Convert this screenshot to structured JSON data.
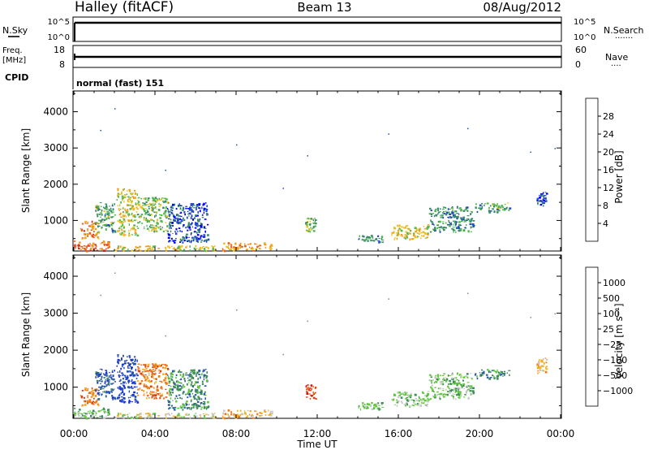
{
  "header": {
    "title_left": "Halley (fitACF)",
    "title_center": "Beam 13",
    "title_right": "08/Aug/2012"
  },
  "strip_nsky": {
    "left_label": "N.Sky",
    "left_ticks": [
      "10^5",
      "10^0"
    ],
    "right_ticks": [
      "10^5",
      "10^0"
    ],
    "right_label": "N.Search",
    "right_marker": "·······"
  },
  "strip_freq": {
    "left_label_1": "Freq.",
    "left_label_2": "[MHz]",
    "left_ticks": [
      "18",
      "8"
    ],
    "right_ticks": [
      "60",
      "0"
    ],
    "right_label": "Nave",
    "right_marker": "····"
  },
  "cpid": {
    "label": "CPID",
    "value": "normal (fast) 151"
  },
  "colors": {
    "power": [
      "#0000ff",
      "#204bbb",
      "#3a8a6a",
      "#52b84a",
      "#e8c020",
      "#f39b1a",
      "#ef5a14",
      "#e02010"
    ],
    "velocity": [
      "#1a3ac8",
      "#2f5aa8",
      "#3e8a5a",
      "#5ec83a",
      "#c8c8c8",
      "#f0b020",
      "#f07a1a",
      "#e04010",
      "#e01010"
    ]
  },
  "chart_data": [
    {
      "type": "heatmap",
      "name": "power-panel",
      "ylabel": "Slant Range [km]",
      "yticks": [
        1000,
        2000,
        3000,
        4000
      ],
      "ylim": [
        180,
        4550
      ],
      "xlim_hours": [
        0,
        24
      ],
      "colorbar": {
        "label": "Power [dB]",
        "ticks": [
          "4",
          "8",
          "12",
          "16",
          "20",
          "24",
          "28"
        ],
        "range": [
          0,
          32
        ]
      },
      "regions": [
        {
          "t0": 0.0,
          "t1": 1.8,
          "r0": 180,
          "r1": 450,
          "v": 26
        },
        {
          "t0": 0.3,
          "t1": 1.2,
          "r0": 500,
          "r1": 1000,
          "v": 24
        },
        {
          "t0": 1.0,
          "t1": 2.0,
          "r0": 700,
          "r1": 1500,
          "v": 12
        },
        {
          "t0": 2.1,
          "t1": 3.1,
          "r0": 600,
          "r1": 1900,
          "v": 18
        },
        {
          "t0": 3.1,
          "t1": 4.6,
          "r0": 700,
          "r1": 1650,
          "v": 14
        },
        {
          "t0": 4.6,
          "t1": 6.6,
          "r0": 400,
          "r1": 1500,
          "v": 6
        },
        {
          "t0": 2.0,
          "t1": 7.0,
          "r0": 180,
          "r1": 320,
          "v": 18
        },
        {
          "t0": 7.3,
          "t1": 9.8,
          "r0": 180,
          "r1": 400,
          "v": 22
        },
        {
          "t0": 11.4,
          "t1": 11.9,
          "r0": 700,
          "r1": 1100,
          "v": 14
        },
        {
          "t0": 14.0,
          "t1": 15.2,
          "r0": 420,
          "r1": 620,
          "v": 10
        },
        {
          "t0": 15.6,
          "t1": 17.5,
          "r0": 500,
          "r1": 900,
          "v": 18
        },
        {
          "t0": 17.5,
          "t1": 19.7,
          "r0": 700,
          "r1": 1400,
          "v": 10
        },
        {
          "t0": 19.7,
          "t1": 21.5,
          "r0": 1250,
          "r1": 1500,
          "v": 12
        },
        {
          "t0": 22.8,
          "t1": 23.3,
          "r0": 1400,
          "r1": 1800,
          "v": 6
        }
      ],
      "dots": [
        [
          2.0,
          4100
        ],
        [
          1.3,
          3500
        ],
        [
          8.0,
          3100
        ],
        [
          11.5,
          2800
        ],
        [
          15.5,
          3400
        ],
        [
          19.4,
          3550
        ],
        [
          22.5,
          2900
        ],
        [
          23.7,
          3000
        ],
        [
          4.5,
          2400
        ],
        [
          10.3,
          1900
        ]
      ]
    },
    {
      "type": "heatmap",
      "name": "velocity-panel",
      "ylabel": "Slant Range [km]",
      "yticks": [
        1000,
        2000,
        3000,
        4000
      ],
      "ylim": [
        180,
        4550
      ],
      "xlim_hours": [
        0,
        24
      ],
      "xticks": [
        "00:00",
        "04:00",
        "08:00",
        "12:00",
        "16:00",
        "20:00",
        "00:00"
      ],
      "xlabel": "Time UT",
      "colorbar": {
        "label": "Velocity  [m s⁻¹]",
        "ticks": [
          "1000",
          "500",
          "100",
          "25",
          "−25",
          "−100",
          "−500",
          "−1000"
        ]
      },
      "regions": [
        {
          "t0": 0.0,
          "t1": 1.8,
          "r0": 180,
          "r1": 450,
          "v": 3
        },
        {
          "t0": 0.3,
          "t1": 1.2,
          "r0": 500,
          "r1": 1000,
          "v": 6
        },
        {
          "t0": 1.0,
          "t1": 2.0,
          "r0": 700,
          "r1": 1500,
          "v": 1
        },
        {
          "t0": 2.1,
          "t1": 3.1,
          "r0": 600,
          "r1": 1900,
          "v": 0
        },
        {
          "t0": 3.1,
          "t1": 4.6,
          "r0": 700,
          "r1": 1650,
          "v": 6
        },
        {
          "t0": 4.6,
          "t1": 6.6,
          "r0": 400,
          "r1": 1500,
          "v": 2
        },
        {
          "t0": 2.0,
          "t1": 7.0,
          "r0": 180,
          "r1": 320,
          "v": 4
        },
        {
          "t0": 7.3,
          "t1": 9.8,
          "r0": 180,
          "r1": 400,
          "v": 5
        },
        {
          "t0": 11.4,
          "t1": 11.9,
          "r0": 700,
          "r1": 1100,
          "v": 7
        },
        {
          "t0": 14.0,
          "t1": 15.2,
          "r0": 420,
          "r1": 620,
          "v": 3
        },
        {
          "t0": 15.6,
          "t1": 17.5,
          "r0": 500,
          "r1": 900,
          "v": 3
        },
        {
          "t0": 17.5,
          "t1": 19.7,
          "r0": 700,
          "r1": 1400,
          "v": 3
        },
        {
          "t0": 19.7,
          "t1": 21.5,
          "r0": 1250,
          "r1": 1500,
          "v": 2
        },
        {
          "t0": 22.8,
          "t1": 23.3,
          "r0": 1400,
          "r1": 1800,
          "v": 5
        }
      ],
      "dots": [
        [
          2.0,
          4100
        ],
        [
          1.3,
          3500
        ],
        [
          8.0,
          3100
        ],
        [
          11.5,
          2800
        ],
        [
          15.5,
          3400
        ],
        [
          19.4,
          3550
        ],
        [
          22.5,
          2900
        ],
        [
          23.7,
          3000
        ],
        [
          4.5,
          2400
        ],
        [
          10.3,
          1900
        ]
      ]
    }
  ]
}
